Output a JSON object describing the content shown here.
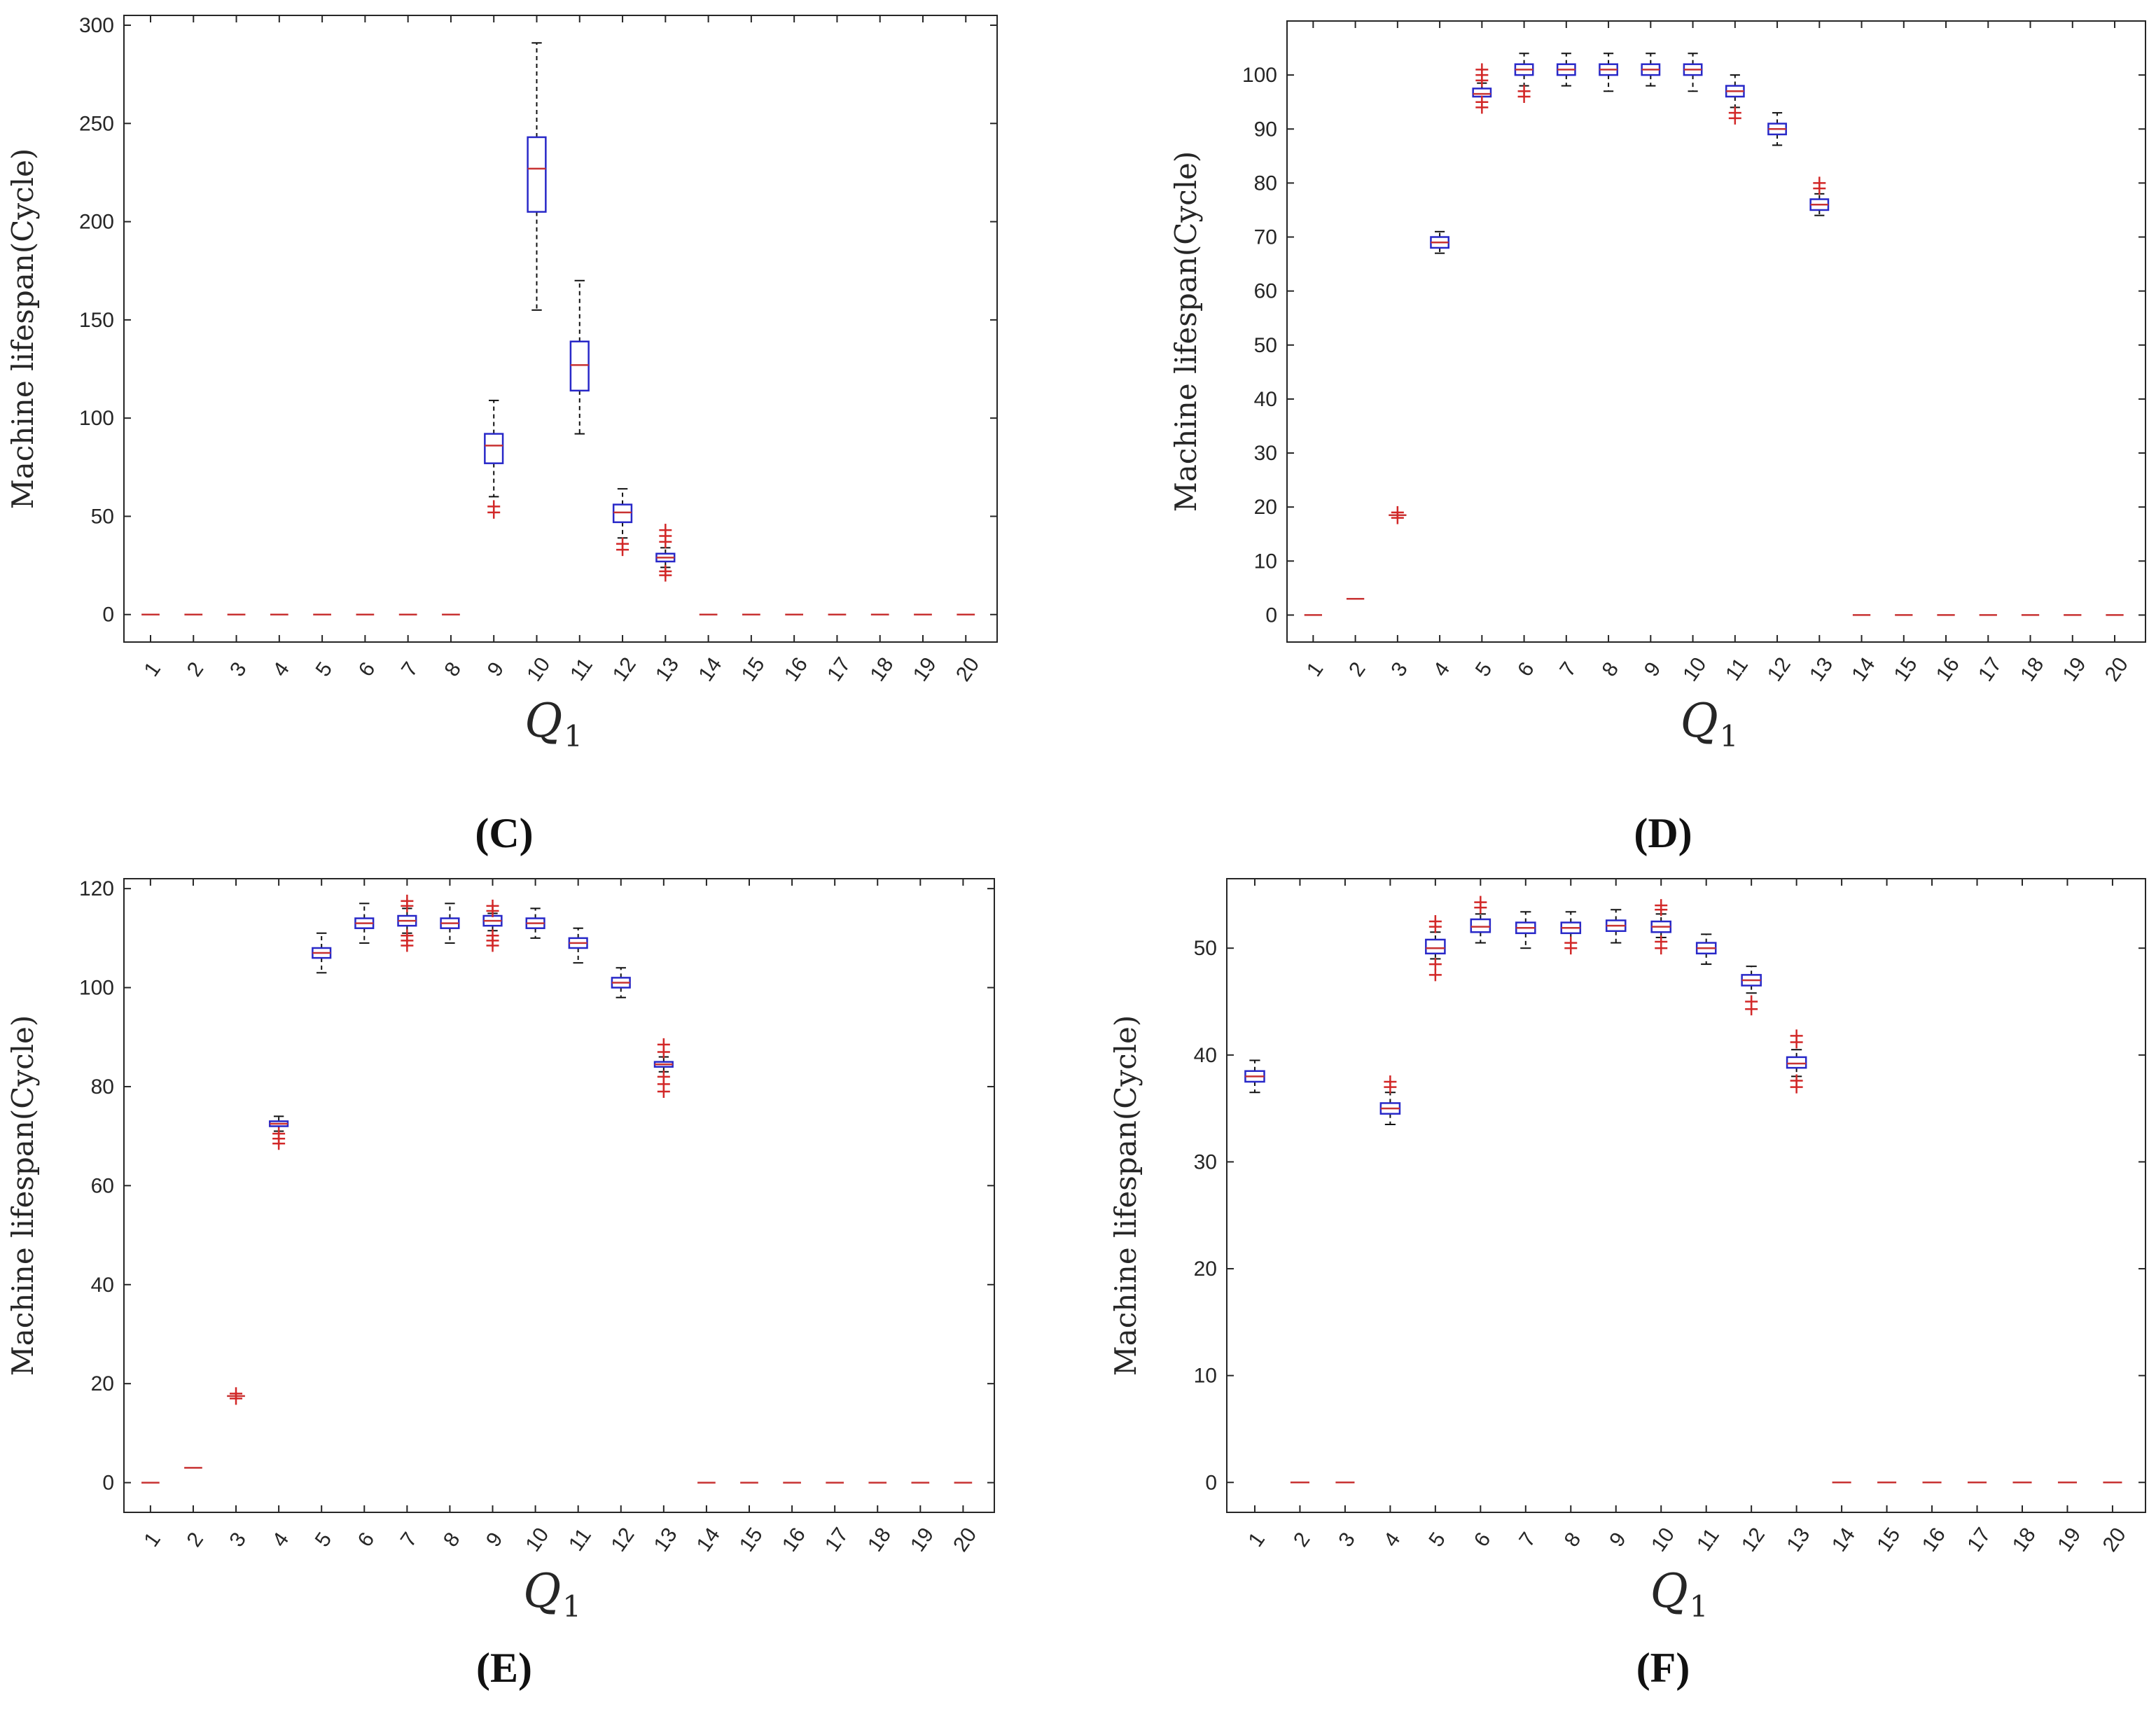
{
  "colors": {
    "box": "#2828c8",
    "median": "#c83232",
    "whisker": "#111111",
    "outlier": "#d22828",
    "axis": "#262626"
  },
  "chart_data": [
    {
      "panel": "(C)",
      "type": "box",
      "xlabel": "Q",
      "xlabel_sub": "1",
      "ylabel": "Machine lifespan(Cycle)",
      "ylim": [
        -14,
        305
      ],
      "yticks": [
        0,
        50,
        100,
        150,
        200,
        250,
        300
      ],
      "categories": [
        "1",
        "2",
        "3",
        "4",
        "5",
        "6",
        "7",
        "8",
        "9",
        "10",
        "11",
        "12",
        "13",
        "14",
        "15",
        "16",
        "17",
        "18",
        "19",
        "20"
      ],
      "boxes": [
        {
          "q1": 0,
          "median": 0,
          "q3": 0,
          "lo": 0,
          "hi": 0,
          "outliers": []
        },
        {
          "q1": 0,
          "median": 0,
          "q3": 0,
          "lo": 0,
          "hi": 0,
          "outliers": []
        },
        {
          "q1": 0,
          "median": 0,
          "q3": 0,
          "lo": 0,
          "hi": 0,
          "outliers": []
        },
        {
          "q1": 0,
          "median": 0,
          "q3": 0,
          "lo": 0,
          "hi": 0,
          "outliers": []
        },
        {
          "q1": 0,
          "median": 0,
          "q3": 0,
          "lo": 0,
          "hi": 0,
          "outliers": []
        },
        {
          "q1": 0,
          "median": 0,
          "q3": 0,
          "lo": 0,
          "hi": 0,
          "outliers": []
        },
        {
          "q1": 0,
          "median": 0,
          "q3": 0,
          "lo": 0,
          "hi": 0,
          "outliers": []
        },
        {
          "q1": 0,
          "median": 0,
          "q3": 0,
          "lo": 0,
          "hi": 0,
          "outliers": []
        },
        {
          "q1": 77,
          "median": 86,
          "q3": 92,
          "lo": 60,
          "hi": 109,
          "outliers": [
            52,
            55
          ]
        },
        {
          "q1": 205,
          "median": 227,
          "q3": 243,
          "lo": 155,
          "hi": 291,
          "outliers": []
        },
        {
          "q1": 114,
          "median": 127,
          "q3": 139,
          "lo": 92,
          "hi": 170,
          "outliers": []
        },
        {
          "q1": 47,
          "median": 52,
          "q3": 56,
          "lo": 39,
          "hi": 64,
          "outliers": [
            33,
            36
          ]
        },
        {
          "q1": 27,
          "median": 29,
          "q3": 31,
          "lo": 24,
          "hi": 34,
          "outliers": [
            20,
            22,
            37,
            40,
            43
          ]
        },
        {
          "q1": 0,
          "median": 0,
          "q3": 0,
          "lo": 0,
          "hi": 0,
          "outliers": []
        },
        {
          "q1": 0,
          "median": 0,
          "q3": 0,
          "lo": 0,
          "hi": 0,
          "outliers": []
        },
        {
          "q1": 0,
          "median": 0,
          "q3": 0,
          "lo": 0,
          "hi": 0,
          "outliers": []
        },
        {
          "q1": 0,
          "median": 0,
          "q3": 0,
          "lo": 0,
          "hi": 0,
          "outliers": []
        },
        {
          "q1": 0,
          "median": 0,
          "q3": 0,
          "lo": 0,
          "hi": 0,
          "outliers": []
        },
        {
          "q1": 0,
          "median": 0,
          "q3": 0,
          "lo": 0,
          "hi": 0,
          "outliers": []
        },
        {
          "q1": 0,
          "median": 0,
          "q3": 0,
          "lo": 0,
          "hi": 0,
          "outliers": []
        }
      ]
    },
    {
      "panel": "(D)",
      "type": "box",
      "xlabel": "Q",
      "xlabel_sub": "1",
      "ylabel": "Machine lifespan(Cycle)",
      "ylim": [
        -5,
        110
      ],
      "yticks": [
        0,
        10,
        20,
        30,
        40,
        50,
        60,
        70,
        80,
        90,
        100
      ],
      "categories": [
        "1",
        "2",
        "3",
        "4",
        "5",
        "6",
        "7",
        "8",
        "9",
        "10",
        "11",
        "12",
        "13",
        "14",
        "15",
        "16",
        "17",
        "18",
        "19",
        "20"
      ],
      "boxes": [
        {
          "q1": 0,
          "median": 0,
          "q3": 0,
          "lo": 0,
          "hi": 0,
          "outliers": []
        },
        {
          "q1": 3,
          "median": 3,
          "q3": 3,
          "lo": 3,
          "hi": 3,
          "outliers": []
        },
        {
          "q1": 18.5,
          "median": 18.5,
          "q3": 18.5,
          "lo": 18.5,
          "hi": 18.5,
          "outliers": [
            18,
            19
          ]
        },
        {
          "q1": 68,
          "median": 69,
          "q3": 70,
          "lo": 67,
          "hi": 71,
          "outliers": []
        },
        {
          "q1": 96,
          "median": 96.5,
          "q3": 97.5,
          "lo": 95,
          "hi": 98.5,
          "outliers": [
            94,
            95,
            99,
            100,
            101
          ]
        },
        {
          "q1": 100,
          "median": 101,
          "q3": 102,
          "lo": 98,
          "hi": 104,
          "outliers": [
            96,
            97
          ]
        },
        {
          "q1": 100,
          "median": 101,
          "q3": 102,
          "lo": 98,
          "hi": 104,
          "outliers": []
        },
        {
          "q1": 100,
          "median": 101,
          "q3": 102,
          "lo": 97,
          "hi": 104,
          "outliers": []
        },
        {
          "q1": 100,
          "median": 101,
          "q3": 102,
          "lo": 98,
          "hi": 104,
          "outliers": []
        },
        {
          "q1": 100,
          "median": 101,
          "q3": 102,
          "lo": 97,
          "hi": 104,
          "outliers": []
        },
        {
          "q1": 96,
          "median": 97,
          "q3": 98,
          "lo": 94,
          "hi": 100,
          "outliers": [
            92,
            93
          ]
        },
        {
          "q1": 89,
          "median": 90,
          "q3": 91,
          "lo": 87,
          "hi": 93,
          "outliers": []
        },
        {
          "q1": 75,
          "median": 76,
          "q3": 77,
          "lo": 74,
          "hi": 78,
          "outliers": [
            79,
            80
          ]
        },
        {
          "q1": 0,
          "median": 0,
          "q3": 0,
          "lo": 0,
          "hi": 0,
          "outliers": []
        },
        {
          "q1": 0,
          "median": 0,
          "q3": 0,
          "lo": 0,
          "hi": 0,
          "outliers": []
        },
        {
          "q1": 0,
          "median": 0,
          "q3": 0,
          "lo": 0,
          "hi": 0,
          "outliers": []
        },
        {
          "q1": 0,
          "median": 0,
          "q3": 0,
          "lo": 0,
          "hi": 0,
          "outliers": []
        },
        {
          "q1": 0,
          "median": 0,
          "q3": 0,
          "lo": 0,
          "hi": 0,
          "outliers": []
        },
        {
          "q1": 0,
          "median": 0,
          "q3": 0,
          "lo": 0,
          "hi": 0,
          "outliers": []
        },
        {
          "q1": 0,
          "median": 0,
          "q3": 0,
          "lo": 0,
          "hi": 0,
          "outliers": []
        }
      ]
    },
    {
      "panel": "(E)",
      "type": "box",
      "xlabel": "Q",
      "xlabel_sub": "1",
      "ylabel": "Machine lifespan(Cycle)",
      "ylim": [
        -6,
        122
      ],
      "yticks": [
        0,
        20,
        40,
        60,
        80,
        100,
        120
      ],
      "categories": [
        "1",
        "2",
        "3",
        "4",
        "5",
        "6",
        "7",
        "8",
        "9",
        "10",
        "11",
        "12",
        "13",
        "14",
        "15",
        "16",
        "17",
        "18",
        "19",
        "20"
      ],
      "boxes": [
        {
          "q1": 0,
          "median": 0,
          "q3": 0,
          "lo": 0,
          "hi": 0,
          "outliers": []
        },
        {
          "q1": 3,
          "median": 3,
          "q3": 3,
          "lo": 3,
          "hi": 3,
          "outliers": []
        },
        {
          "q1": 17.5,
          "median": 17.5,
          "q3": 17.5,
          "lo": 17.5,
          "hi": 17.5,
          "outliers": [
            17,
            18
          ]
        },
        {
          "q1": 72,
          "median": 72.5,
          "q3": 73,
          "lo": 71,
          "hi": 74,
          "outliers": [
            68.5,
            69.5,
            70.5
          ]
        },
        {
          "q1": 106,
          "median": 107,
          "q3": 108,
          "lo": 103,
          "hi": 111,
          "outliers": []
        },
        {
          "q1": 112,
          "median": 113,
          "q3": 114,
          "lo": 109,
          "hi": 117,
          "outliers": []
        },
        {
          "q1": 112.5,
          "median": 113.5,
          "q3": 114.5,
          "lo": 111,
          "hi": 116,
          "outliers": [
            108.5,
            109.5,
            110.5,
            116.5,
            117.5
          ]
        },
        {
          "q1": 112,
          "median": 113,
          "q3": 114,
          "lo": 109,
          "hi": 117,
          "outliers": []
        },
        {
          "q1": 112.5,
          "median": 113.5,
          "q3": 114.5,
          "lo": 111.5,
          "hi": 115,
          "outliers": [
            108.5,
            109.5,
            110.5,
            115.5,
            116.5
          ]
        },
        {
          "q1": 112,
          "median": 113,
          "q3": 114,
          "lo": 110,
          "hi": 116,
          "outliers": []
        },
        {
          "q1": 108,
          "median": 109,
          "q3": 110,
          "lo": 105,
          "hi": 112,
          "outliers": []
        },
        {
          "q1": 100,
          "median": 101,
          "q3": 102,
          "lo": 98,
          "hi": 104,
          "outliers": []
        },
        {
          "q1": 84,
          "median": 84.5,
          "q3": 85,
          "lo": 83,
          "hi": 86,
          "outliers": [
            79,
            80.5,
            82,
            87,
            88.5
          ]
        },
        {
          "q1": 0,
          "median": 0,
          "q3": 0,
          "lo": 0,
          "hi": 0,
          "outliers": []
        },
        {
          "q1": 0,
          "median": 0,
          "q3": 0,
          "lo": 0,
          "hi": 0,
          "outliers": []
        },
        {
          "q1": 0,
          "median": 0,
          "q3": 0,
          "lo": 0,
          "hi": 0,
          "outliers": []
        },
        {
          "q1": 0,
          "median": 0,
          "q3": 0,
          "lo": 0,
          "hi": 0,
          "outliers": []
        },
        {
          "q1": 0,
          "median": 0,
          "q3": 0,
          "lo": 0,
          "hi": 0,
          "outliers": []
        },
        {
          "q1": 0,
          "median": 0,
          "q3": 0,
          "lo": 0,
          "hi": 0,
          "outliers": []
        },
        {
          "q1": 0,
          "median": 0,
          "q3": 0,
          "lo": 0,
          "hi": 0,
          "outliers": []
        }
      ]
    },
    {
      "panel": "(F)",
      "type": "box",
      "xlabel": "Q",
      "xlabel_sub": "1",
      "ylabel": "Machine lifespan(Cycle)",
      "ylim": [
        -2.8,
        56.5
      ],
      "yticks": [
        0,
        10,
        20,
        30,
        40,
        50
      ],
      "categories": [
        "1",
        "2",
        "3",
        "4",
        "5",
        "6",
        "7",
        "8",
        "9",
        "10",
        "11",
        "12",
        "13",
        "14",
        "15",
        "16",
        "17",
        "18",
        "19",
        "20"
      ],
      "boxes": [
        {
          "q1": 37.5,
          "median": 38,
          "q3": 38.5,
          "lo": 36.5,
          "hi": 39.5,
          "outliers": []
        },
        {
          "q1": 0,
          "median": 0,
          "q3": 0,
          "lo": 0,
          "hi": 0,
          "outliers": []
        },
        {
          "q1": 0,
          "median": 0,
          "q3": 0,
          "lo": 0,
          "hi": 0,
          "outliers": []
        },
        {
          "q1": 34.5,
          "median": 35,
          "q3": 35.5,
          "lo": 33.5,
          "hi": 36.5,
          "outliers": [
            37,
            37.5
          ]
        },
        {
          "q1": 49.5,
          "median": 50,
          "q3": 50.8,
          "lo": 49,
          "hi": 51.5,
          "outliers": [
            47.5,
            48.5,
            52,
            52.5
          ]
        },
        {
          "q1": 51.5,
          "median": 52,
          "q3": 52.7,
          "lo": 50.5,
          "hi": 53.2,
          "outliers": [
            53.8,
            54.3
          ]
        },
        {
          "q1": 51.4,
          "median": 51.9,
          "q3": 52.4,
          "lo": 50,
          "hi": 53.4,
          "outliers": []
        },
        {
          "q1": 51.4,
          "median": 51.9,
          "q3": 52.4,
          "lo": 50.5,
          "hi": 53.4,
          "outliers": [
            50,
            50.5
          ]
        },
        {
          "q1": 51.6,
          "median": 52.1,
          "q3": 52.6,
          "lo": 50.5,
          "hi": 53.6,
          "outliers": []
        },
        {
          "q1": 51.5,
          "median": 52,
          "q3": 52.5,
          "lo": 51,
          "hi": 53.2,
          "outliers": [
            50,
            50.6,
            53.6,
            54
          ]
        },
        {
          "q1": 49.5,
          "median": 50,
          "q3": 50.5,
          "lo": 48.5,
          "hi": 51.3,
          "outliers": []
        },
        {
          "q1": 46.5,
          "median": 47,
          "q3": 47.5,
          "lo": 45.8,
          "hi": 48.3,
          "outliers": [
            44.3,
            45
          ]
        },
        {
          "q1": 38.8,
          "median": 39.2,
          "q3": 39.8,
          "lo": 38,
          "hi": 40.5,
          "outliers": [
            37,
            37.6,
            41.2,
            41.8
          ]
        },
        {
          "q1": 0,
          "median": 0,
          "q3": 0,
          "lo": 0,
          "hi": 0,
          "outliers": []
        },
        {
          "q1": 0,
          "median": 0,
          "q3": 0,
          "lo": 0,
          "hi": 0,
          "outliers": []
        },
        {
          "q1": 0,
          "median": 0,
          "q3": 0,
          "lo": 0,
          "hi": 0,
          "outliers": []
        },
        {
          "q1": 0,
          "median": 0,
          "q3": 0,
          "lo": 0,
          "hi": 0,
          "outliers": []
        },
        {
          "q1": 0,
          "median": 0,
          "q3": 0,
          "lo": 0,
          "hi": 0,
          "outliers": []
        },
        {
          "q1": 0,
          "median": 0,
          "q3": 0,
          "lo": 0,
          "hi": 0,
          "outliers": []
        },
        {
          "q1": 0,
          "median": 0,
          "q3": 0,
          "lo": 0,
          "hi": 0,
          "outliers": []
        }
      ]
    }
  ]
}
